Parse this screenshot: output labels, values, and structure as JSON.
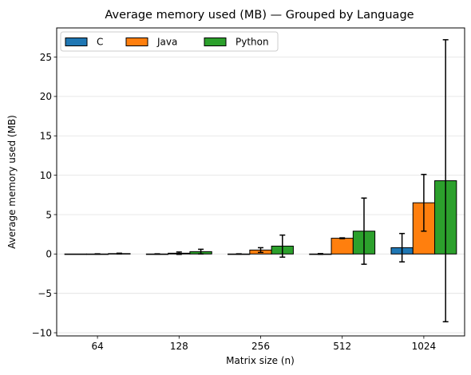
{
  "chart_data": {
    "type": "bar",
    "title": "Average memory used (MB) — Grouped by Language",
    "xlabel": "Matrix size (n)",
    "ylabel": "Average memory used (MB)",
    "categories": [
      "64",
      "128",
      "256",
      "512",
      "1024"
    ],
    "series": [
      {
        "name": "C",
        "color": "#1f77b4",
        "values": [
          0.0,
          0.0,
          0.0,
          0.0,
          0.8
        ],
        "errors": [
          0.0,
          0.02,
          0.02,
          0.05,
          1.8
        ]
      },
      {
        "name": "Java",
        "color": "#ff7f0e",
        "values": [
          0.0,
          0.1,
          0.5,
          2.0,
          6.5
        ],
        "errors": [
          0.02,
          0.15,
          0.3,
          0.05,
          3.6
        ]
      },
      {
        "name": "Python",
        "color": "#2ca02c",
        "values": [
          0.05,
          0.3,
          1.0,
          2.9,
          9.3
        ],
        "errors": [
          0.05,
          0.3,
          1.4,
          4.2,
          17.9
        ]
      }
    ],
    "ylim": [
      -10.4,
      28.7
    ],
    "yticks": [
      -10,
      -5,
      0,
      5,
      10,
      15,
      20,
      25
    ],
    "ytick_labels": [
      "−10",
      "−5",
      "0",
      "5",
      "10",
      "15",
      "20",
      "25"
    ],
    "grid": "y",
    "legend": "top-left"
  }
}
